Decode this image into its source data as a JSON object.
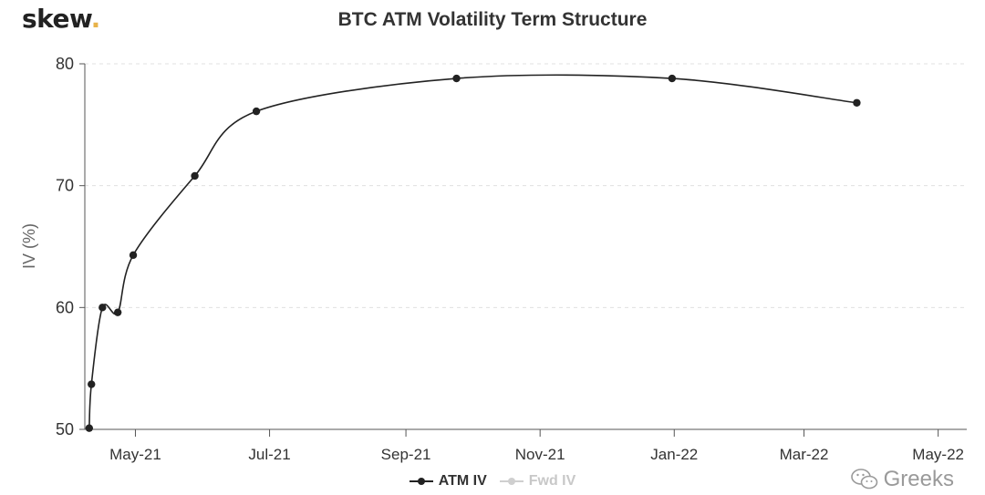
{
  "brand": {
    "name": "skew",
    "dot": "."
  },
  "watermark": {
    "text": "Greeks",
    "icon": "wechat-icon"
  },
  "colors": {
    "series_active": "#222222",
    "series_inactive": "#cfcfcf",
    "grid": "#e0e0e0",
    "axis": "#555555",
    "logo_dot": "#e8b34a"
  },
  "chart_data": {
    "type": "line",
    "title": "BTC ATM Volatility Term Structure",
    "xlabel": "",
    "ylabel": "IV (%)",
    "ylim": [
      50,
      80
    ],
    "yticks": [
      50,
      60,
      70,
      80
    ],
    "xlim": [
      "2021-04-08",
      "2022-05-14"
    ],
    "xticks": [
      {
        "date": "2021-05-01",
        "label": "May-21"
      },
      {
        "date": "2021-07-01",
        "label": "Jul-21"
      },
      {
        "date": "2021-09-01",
        "label": "Sep-21"
      },
      {
        "date": "2021-11-01",
        "label": "Nov-21"
      },
      {
        "date": "2022-01-01",
        "label": "Jan-22"
      },
      {
        "date": "2022-03-01",
        "label": "Mar-22"
      },
      {
        "date": "2022-05-01",
        "label": "May-22"
      }
    ],
    "grid": true,
    "legend_position": "bottom-center",
    "series": [
      {
        "name": "ATM IV",
        "points": [
          {
            "x": "2021-04-10",
            "y": 50.1
          },
          {
            "x": "2021-04-11",
            "y": 53.7
          },
          {
            "x": "2021-04-16",
            "y": 60.0
          },
          {
            "x": "2021-04-23",
            "y": 59.6
          },
          {
            "x": "2021-04-30",
            "y": 64.3
          },
          {
            "x": "2021-05-28",
            "y": 70.8
          },
          {
            "x": "2021-06-25",
            "y": 76.1
          },
          {
            "x": "2021-09-24",
            "y": 78.8
          },
          {
            "x": "2021-12-31",
            "y": 78.8
          },
          {
            "x": "2022-03-25",
            "y": 76.8
          }
        ]
      },
      {
        "name": "Fwd IV",
        "points": []
      }
    ]
  }
}
